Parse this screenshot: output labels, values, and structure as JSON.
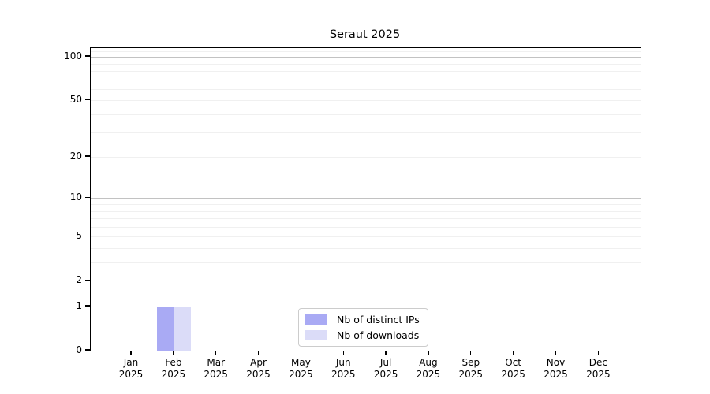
{
  "chart_data": {
    "type": "bar",
    "title": "Seraut 2025",
    "categories": [
      "Jan",
      "Feb",
      "Mar",
      "Apr",
      "May",
      "Jun",
      "Jul",
      "Aug",
      "Sep",
      "Oct",
      "Nov",
      "Dec"
    ],
    "category_year": "2025",
    "series": [
      {
        "name": "Nb of distinct IPs",
        "color": "#a9aaf4",
        "values": [
          0,
          1,
          0,
          0,
          0,
          0,
          0,
          0,
          0,
          0,
          0,
          0
        ]
      },
      {
        "name": "Nb of downloads",
        "color": "#dbdcf8",
        "values": [
          0,
          1,
          0,
          0,
          0,
          0,
          0,
          0,
          0,
          0,
          0,
          0
        ]
      }
    ],
    "y_axis": {
      "ticks": [
        0,
        1,
        2,
        5,
        10,
        20,
        50,
        100
      ],
      "scale": "log1p",
      "ylim": [
        0,
        115
      ],
      "major_gridlines": [
        1,
        10,
        100
      ],
      "minor_gridlines": [
        2,
        3,
        4,
        5,
        6,
        7,
        8,
        9,
        20,
        30,
        40,
        50,
        60,
        70,
        80,
        90,
        110
      ]
    },
    "xlabel": "",
    "ylabel": "",
    "grid": true,
    "legend_position": "lower center"
  },
  "colors": {
    "major_grid": "#c2c2c2",
    "minor_grid": "#f0f0f0",
    "axis": "#000000",
    "background": "#ffffff"
  }
}
